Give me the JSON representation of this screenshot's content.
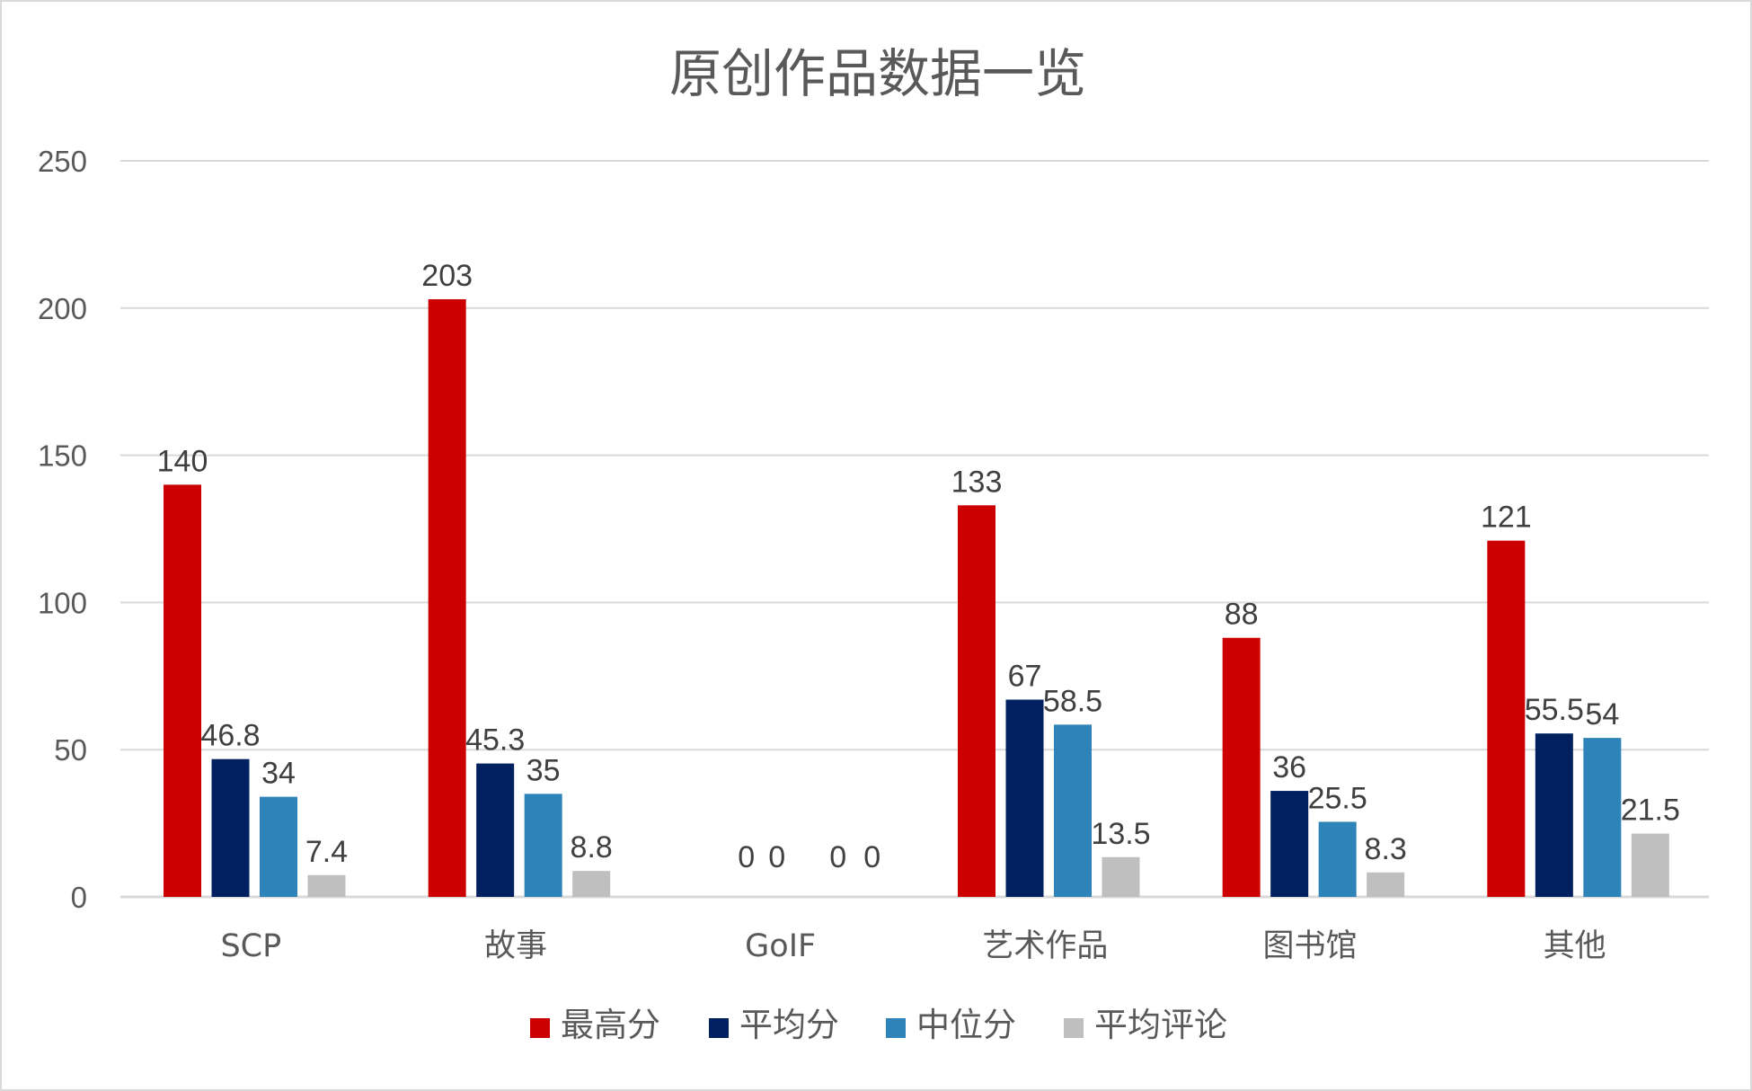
{
  "chart_data": {
    "type": "bar",
    "title": "原创作品数据一览",
    "categories": [
      "SCP",
      "故事",
      "GoIF",
      "艺术作品",
      "图书馆",
      "其他"
    ],
    "series": [
      {
        "name": "最高分",
        "color": "#cc0000",
        "values": [
          140,
          203,
          0,
          133,
          88,
          121
        ]
      },
      {
        "name": "平均分",
        "color": "#002060",
        "values": [
          46.8,
          45.3,
          0,
          67,
          36,
          55.5
        ]
      },
      {
        "name": "中位分",
        "color": "#2e84b8",
        "values": [
          34,
          35,
          0,
          58.5,
          25.5,
          54
        ]
      },
      {
        "name": "平均评论",
        "color": "#bfbfbf",
        "values": [
          7.4,
          8.8,
          0,
          13.5,
          8.3,
          21.5
        ]
      }
    ],
    "ylim": [
      0,
      250
    ],
    "yticks": [
      0,
      50,
      100,
      150,
      200,
      250
    ],
    "grid": true,
    "legend_position": "bottom",
    "data_labels": true,
    "gridline_color": "#d9d9d9",
    "axis_color": "#d9d9d9"
  }
}
